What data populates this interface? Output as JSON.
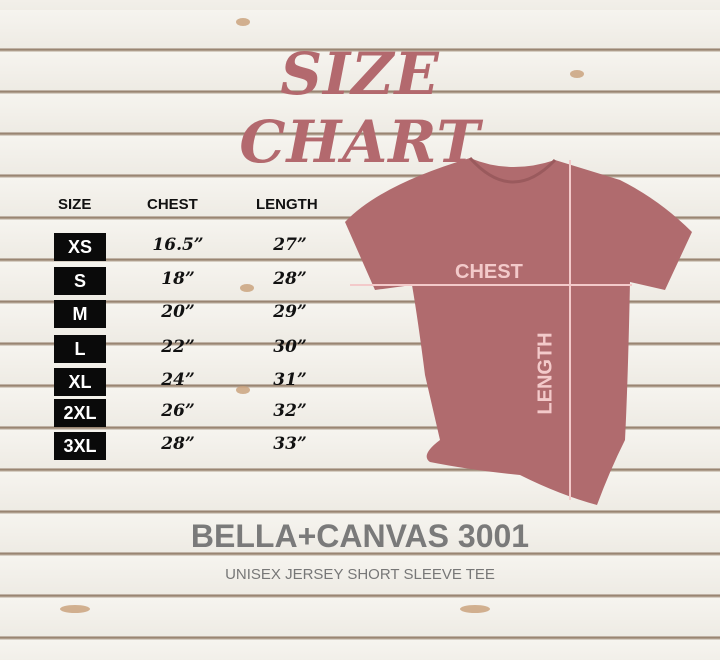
{
  "title": "SIZE CHART",
  "headers": {
    "size": "SIZE",
    "chest": "CHEST",
    "length": "LENGTH"
  },
  "rows": [
    {
      "size": "XS",
      "chest": "16.5”",
      "length": "27”"
    },
    {
      "size": "S",
      "chest": "18”",
      "length": "28”"
    },
    {
      "size": "M",
      "chest": "20”",
      "length": "29”"
    },
    {
      "size": "L",
      "chest": "22”",
      "length": "30”"
    },
    {
      "size": "XL",
      "chest": "24”",
      "length": "31”"
    },
    {
      "size": "2XL",
      "chest": "26”",
      "length": "32”"
    },
    {
      "size": "3XL",
      "chest": "28”",
      "length": "33”"
    }
  ],
  "shirt": {
    "chest_label": "CHEST",
    "length_label": "LENGTH",
    "color": "#b06b6e"
  },
  "brand": "BELLA+CANVAS 3001",
  "subtitle": "UNISEX JERSEY SHORT SLEEVE TEE"
}
